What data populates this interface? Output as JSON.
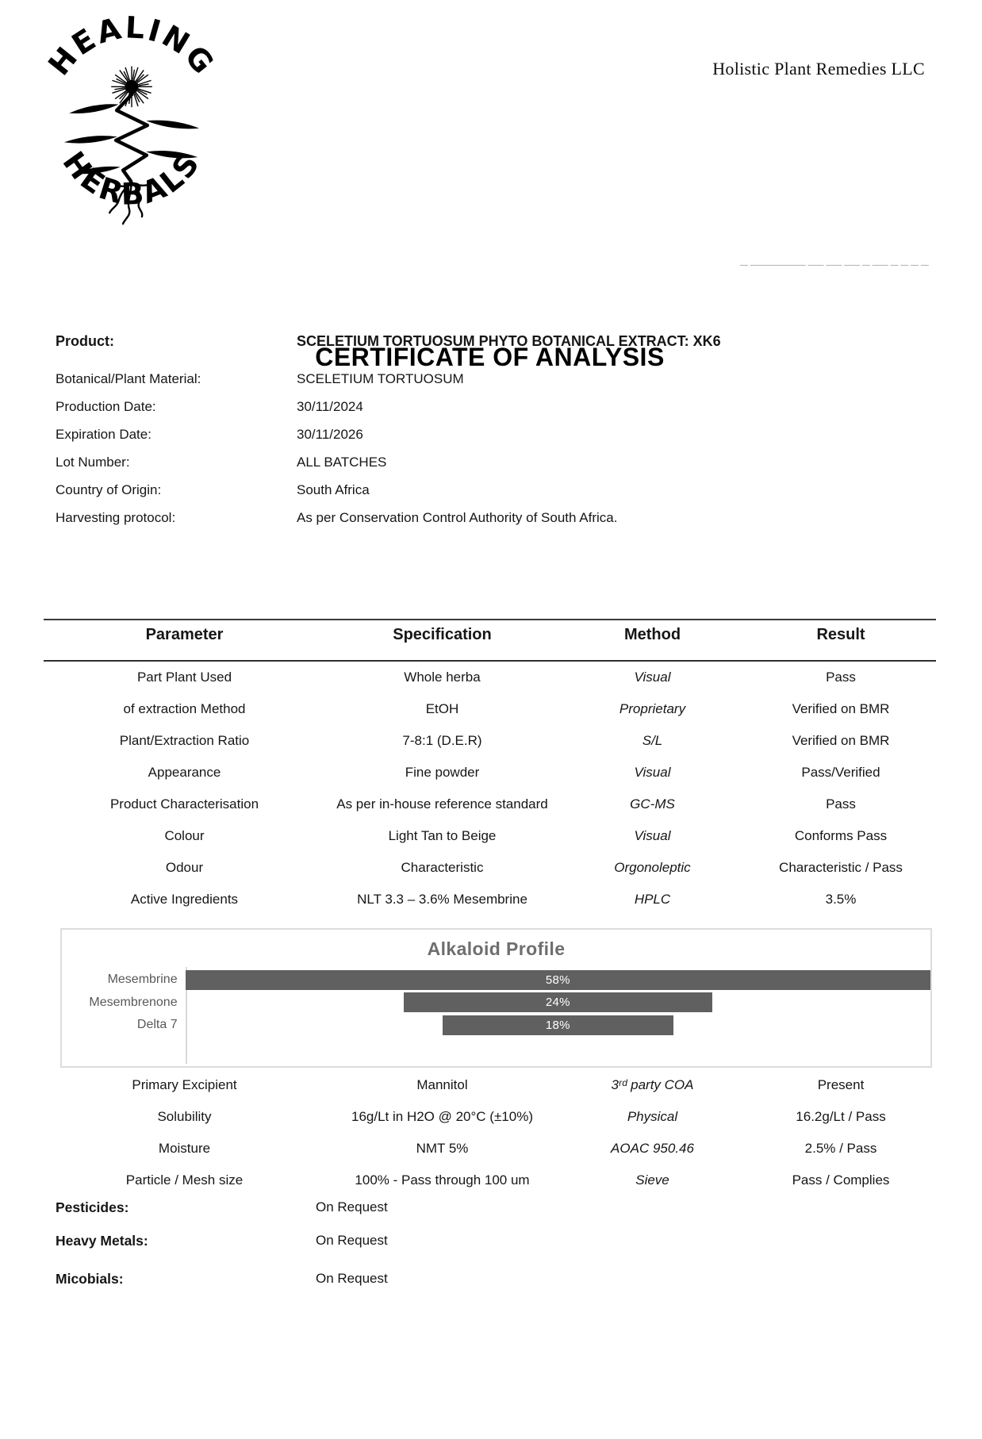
{
  "header": {
    "logo_arc_top": "HEALING",
    "logo_arc_bottom": "HERBALS",
    "company_name": "Holistic Plant Remedies LLC",
    "faint_clipped_line": "— ——————— ——  —— ——  — —— —  — — — —"
  },
  "title": "CERTIFICATE OF ANALYSIS",
  "product_info": {
    "rows": [
      {
        "label": "Product:",
        "value": "SCELETIUM TORTUOSUM PHYTO BOTANICAL EXTRACT: XK6"
      },
      {
        "label": "Botanical/Plant Material:",
        "value": "SCELETIUM TORTUOSUM"
      },
      {
        "label": "Production Date:",
        "value": "30/11/2024"
      },
      {
        "label": "Expiration Date:",
        "value": "30/11/2026"
      },
      {
        "label": "Lot Number:",
        "value": "ALL BATCHES"
      },
      {
        "label": "Country of Origin:",
        "value": "South Africa"
      },
      {
        "label": "Harvesting protocol:",
        "value": "As per Conservation Control Authority of South Africa."
      }
    ]
  },
  "spec_table": {
    "headers": [
      "Parameter",
      "Specification",
      "Method",
      "Result"
    ],
    "rows": [
      {
        "parameter": "Part Plant Used",
        "specification": "Whole herba",
        "method": "Visual",
        "result": "Pass"
      },
      {
        "parameter": "of extraction Method",
        "specification": "EtOH",
        "method": "Proprietary",
        "result": "Verified on BMR"
      },
      {
        "parameter": "Plant/Extraction Ratio",
        "specification": "7-8:1 (D.E.R)",
        "method": "S/L",
        "result": "Verified on BMR"
      },
      {
        "parameter": "Appearance",
        "specification": "Fine powder",
        "method": "Visual",
        "result": "Pass/Verified"
      },
      {
        "parameter": "Product Characterisation",
        "specification": "As per in-house reference standard",
        "method": "GC-MS",
        "result": "Pass"
      },
      {
        "parameter": "Colour",
        "specification": "Light Tan to Beige",
        "method": "Visual",
        "result": "Conforms Pass"
      },
      {
        "parameter": "Odour",
        "specification": "Characteristic",
        "method": "Orgonoleptic",
        "result": "Characteristic / Pass"
      },
      {
        "parameter": "Active Ingredients",
        "specification": "NLT 3.3 – 3.6% Mesembrine",
        "method": "HPLC",
        "result": "3.5%"
      }
    ],
    "rows_lower": [
      {
        "parameter": "Primary Excipient",
        "specification": "Mannitol",
        "method": "3ʳᵈ party COA",
        "result": "Present"
      },
      {
        "parameter": "Solubility",
        "specification": "16g/Lt in H2O @ 20°C (±10%)",
        "method": "Physical",
        "result": "16.2g/Lt / Pass"
      },
      {
        "parameter": "Moisture",
        "specification": "NMT 5%",
        "method": "AOAC 950.46",
        "result": "2.5% / Pass"
      },
      {
        "parameter": "Particle / Mesh size",
        "specification": "100% - Pass through 100 um",
        "method": "Sieve",
        "result": "Pass / Complies"
      }
    ]
  },
  "chart_data": {
    "type": "bar",
    "variant": "centered-funnel-horizontal",
    "title": "Alkaloid Profile",
    "categories": [
      "Mesembrine",
      "Mesembrenone",
      "Delta 7"
    ],
    "values": [
      58,
      24,
      18
    ],
    "value_suffix": "%",
    "xlim": [
      0,
      58
    ],
    "bar_color": "#606060",
    "label_color": "#595959",
    "axis_color": "#d9d9d9",
    "legend": "none",
    "grid": false
  },
  "request_section": {
    "rows": [
      {
        "label": "Pesticides:",
        "value": "On Request"
      },
      {
        "label": "Heavy Metals:",
        "value": "On Request"
      },
      {
        "label": "Micobials:",
        "value": "On Request"
      }
    ]
  }
}
